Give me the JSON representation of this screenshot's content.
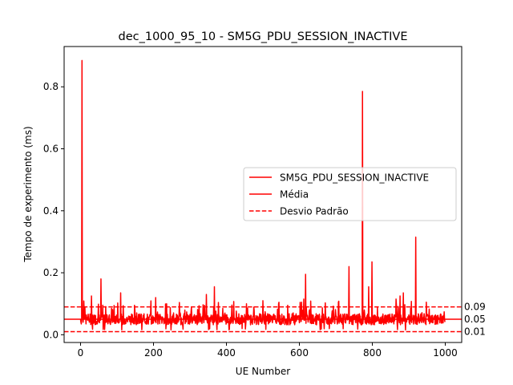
{
  "chart_data": {
    "type": "line",
    "title": "dec_1000_95_10 - SM5G_PDU_SESSION_INACTIVE",
    "xlabel": "UE Number",
    "ylabel": "Tempo de experimento (ms)",
    "xlim": [
      -45,
      1045
    ],
    "ylim": [
      -0.025,
      0.93
    ],
    "xticks": [
      0,
      200,
      400,
      600,
      800,
      1000
    ],
    "yticks": [
      0.0,
      0.2,
      0.4,
      0.6,
      0.8
    ],
    "ytick_labels": [
      "0.0",
      "0.2",
      "0.4",
      "0.6",
      "0.8"
    ],
    "grid": false,
    "legend_position": "center-right",
    "color": "#ff0000",
    "n_points": 1000,
    "baseline": 0.05,
    "series": [
      {
        "name": "SM5G_PDU_SESSION_INACTIVE",
        "style": "solid",
        "spikes": [
          {
            "x": 4,
            "y": 0.885
          },
          {
            "x": 6,
            "y": 0.08
          },
          {
            "x": 30,
            "y": 0.125
          },
          {
            "x": 56,
            "y": 0.18
          },
          {
            "x": 110,
            "y": 0.135
          },
          {
            "x": 206,
            "y": 0.12
          },
          {
            "x": 236,
            "y": 0.1
          },
          {
            "x": 345,
            "y": 0.13
          },
          {
            "x": 367,
            "y": 0.155
          },
          {
            "x": 455,
            "y": 0.1
          },
          {
            "x": 500,
            "y": 0.11
          },
          {
            "x": 543,
            "y": 0.1
          },
          {
            "x": 612,
            "y": 0.115
          },
          {
            "x": 617,
            "y": 0.195
          },
          {
            "x": 736,
            "y": 0.22
          },
          {
            "x": 773,
            "y": 0.785
          },
          {
            "x": 790,
            "y": 0.155
          },
          {
            "x": 799,
            "y": 0.235
          },
          {
            "x": 865,
            "y": 0.115
          },
          {
            "x": 876,
            "y": 0.125
          },
          {
            "x": 885,
            "y": 0.135
          },
          {
            "x": 919,
            "y": 0.315
          },
          {
            "x": 948,
            "y": 0.105
          }
        ]
      },
      {
        "name": "Média",
        "style": "solid",
        "value": 0.05
      },
      {
        "name": "Desvio Padrão",
        "style": "dashed",
        "values": [
          0.09,
          0.01
        ]
      }
    ],
    "hline_labels": [
      {
        "value": 0.09,
        "label": "0.09"
      },
      {
        "value": 0.05,
        "label": "0.05"
      },
      {
        "value": 0.01,
        "label": "0.01"
      }
    ]
  }
}
